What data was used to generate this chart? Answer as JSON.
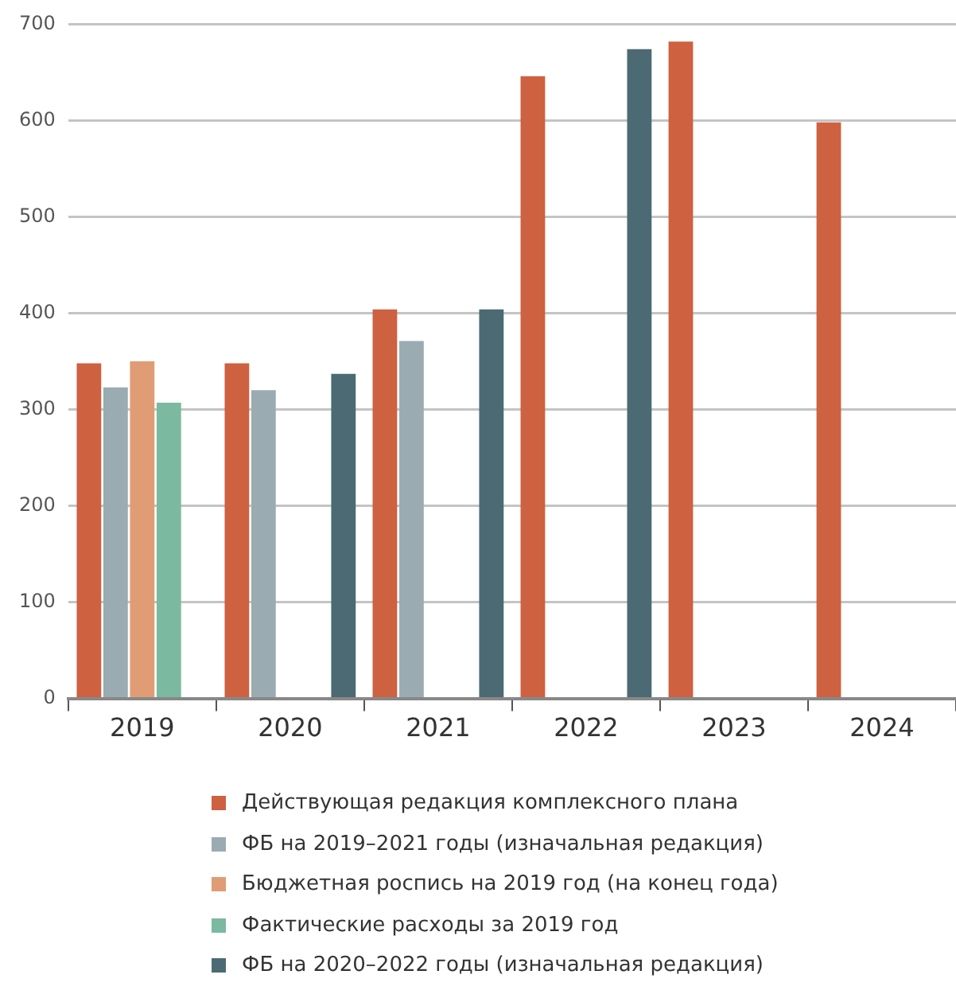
{
  "chart_data": {
    "type": "bar",
    "categories": [
      "2019",
      "2020",
      "2021",
      "2022",
      "2023",
      "2024"
    ],
    "series": [
      {
        "name": "Действующая редакция комплексного плана",
        "color": "#cd6140",
        "values": [
          348,
          348,
          404,
          646,
          682,
          598
        ]
      },
      {
        "name": "ФБ на 2019–2021 годы (изначальная редакция)",
        "color": "#9aabb2",
        "values": [
          323,
          320,
          371,
          null,
          null,
          null
        ]
      },
      {
        "name": "Бюджетная роспись на 2019 год (на конец года)",
        "color": "#e09c74",
        "values": [
          350,
          null,
          null,
          null,
          null,
          null
        ]
      },
      {
        "name": "Фактические расходы за 2019 год",
        "color": "#7bb9a0",
        "values": [
          307,
          null,
          null,
          null,
          null,
          null
        ]
      },
      {
        "name": "ФБ на 2020–2022 годы (изначальная редакция)",
        "color": "#4c6a73",
        "values": [
          null,
          337,
          404,
          674,
          null,
          null
        ]
      }
    ],
    "ylim": [
      0,
      700
    ],
    "yticks": [
      0,
      100,
      200,
      300,
      400,
      500,
      600,
      700
    ],
    "grid": "y",
    "legend": "bottom"
  }
}
